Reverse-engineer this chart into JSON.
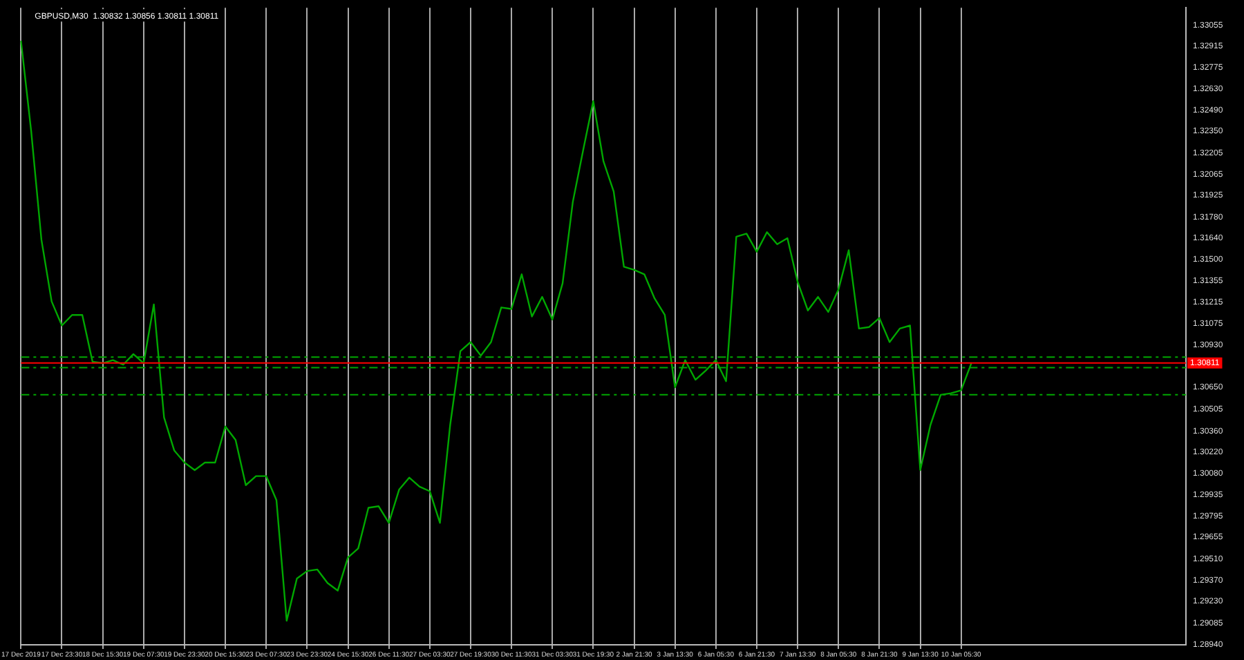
{
  "chart_data": {
    "type": "line",
    "title": "GBPUSD,M30  1.30832 1.30856 1.30811 1.30811",
    "categories": [
      "17 Dec 2019",
      null,
      null,
      null,
      "17 Dec 23:30",
      null,
      null,
      null,
      "18 Dec 15:30",
      null,
      null,
      null,
      "19 Dec 07:30",
      null,
      null,
      null,
      "19 Dec 23:30",
      null,
      null,
      null,
      "20 Dec 15:30",
      null,
      null,
      null,
      "23 Dec 07:30",
      null,
      null,
      null,
      "23 Dec 23:30",
      null,
      null,
      null,
      "24 Dec 15:30",
      null,
      null,
      null,
      "26 Dec 11:30",
      null,
      null,
      null,
      "27 Dec 03:30",
      null,
      null,
      null,
      "27 Dec 19:30",
      null,
      null,
      null,
      "30 Dec 11:30",
      null,
      null,
      null,
      "31 Dec 03:30",
      null,
      null,
      null,
      "31 Dec 19:30",
      null,
      null,
      null,
      "2 Jan 21:30",
      null,
      null,
      null,
      "3 Jan 13:30",
      null,
      null,
      null,
      "6 Jan 05:30",
      null,
      null,
      null,
      "6 Jan 21:30",
      null,
      null,
      null,
      "7 Jan 13:30",
      null,
      null,
      null,
      "8 Jan 05:30",
      null,
      null,
      null,
      "8 Jan 21:30",
      null,
      null,
      null,
      "9 Jan 13:30",
      null,
      null,
      null,
      "10 Jan 05:30",
      null,
      null,
      null,
      null,
      null,
      null,
      null,
      null,
      null,
      null,
      null,
      null,
      null,
      null,
      null,
      null,
      null,
      null,
      null,
      null,
      null,
      null
    ],
    "series": [
      {
        "color": "#00a800",
        "values": [
          1.3295,
          1.3235,
          1.3163,
          1.3122,
          1.3106,
          1.3113,
          1.3113,
          1.3082,
          1.3081,
          1.3083,
          1.308,
          1.3087,
          1.3081,
          1.312,
          1.3045,
          1.3023,
          1.3015,
          1.301,
          1.3015,
          1.3015,
          1.3039,
          1.303,
          1.3,
          1.3006,
          1.3006,
          1.299,
          1.291,
          1.2938,
          1.2943,
          1.2944,
          1.2935,
          1.293,
          1.2952,
          1.2958,
          1.2985,
          1.2986,
          1.2975,
          1.2997,
          1.3005,
          1.2999,
          1.2996,
          1.2975,
          1.304,
          1.3089,
          1.3095,
          1.3086,
          1.3095,
          1.3118,
          1.3117,
          1.314,
          1.3112,
          1.3125,
          1.311,
          1.3134,
          1.3188,
          1.3222,
          1.3255,
          1.3215,
          1.3195,
          1.3145,
          1.3143,
          1.314,
          1.3124,
          1.3113,
          1.3065,
          1.3083,
          1.307,
          1.3076,
          1.3083,
          1.3069,
          1.3165,
          1.3167,
          1.3155,
          1.3168,
          1.316,
          1.3164,
          1.3135,
          1.3116,
          1.3125,
          1.3115,
          1.313,
          1.3156,
          1.3104,
          1.3105,
          1.3111,
          1.3095,
          1.3104,
          1.3106,
          1.301,
          1.304,
          1.306,
          1.3061,
          1.3063,
          1.3081,
          null,
          null,
          null,
          null,
          null,
          null,
          null,
          null,
          null,
          null,
          null,
          null,
          null,
          null,
          null,
          null,
          null,
          null,
          null,
          null,
          null
        ]
      }
    ],
    "ylim": [
      1.2894,
      1.3317
    ],
    "yticks": [
      1.33055,
      1.32915,
      1.32775,
      {
        "value": 1.3263,
        "label": "1.32630"
      },
      {
        "value": 1.3249,
        "label": "1.32490"
      },
      {
        "value": 1.3235,
        "label": "1.32350"
      },
      1.32205,
      1.32065,
      1.31925,
      {
        "value": 1.3178,
        "label": "1.31780"
      },
      {
        "value": 1.3164,
        "label": "1.31640"
      },
      {
        "value": 1.315,
        "label": "1.31500"
      },
      1.31355,
      1.31215,
      1.31075,
      {
        "value": 1.3093,
        "label": "1.30930"
      },
      {
        "value": 1.3065,
        "label": "1.30650"
      },
      1.30505,
      {
        "value": 1.3036,
        "label": "1.30360"
      },
      {
        "value": 1.3022,
        "label": "1.30220"
      },
      {
        "value": 1.3008,
        "label": "1.30080"
      },
      1.29935,
      1.29795,
      1.29655,
      {
        "value": 1.2951,
        "label": "1.29510"
      },
      {
        "value": 1.2937,
        "label": "1.29370"
      },
      {
        "value": 1.2923,
        "label": "1.29230"
      },
      1.29085,
      {
        "value": 1.2894,
        "label": "1.28940"
      }
    ],
    "ref_lines": [
      {
        "axis": "y",
        "value": 1.30811,
        "label": "1.30811",
        "color": "#ff0000",
        "line_style": "solid"
      },
      {
        "axis": "y",
        "value": 1.3085,
        "color": "#00a800",
        "line_style": "dashed"
      },
      {
        "axis": "y",
        "value": 1.3078,
        "color": "#00a800",
        "line_style": "dashed"
      },
      {
        "axis": "y",
        "value": 1.306,
        "color": "#00a800",
        "line_style": "dashed"
      }
    ],
    "grid": "x",
    "legend": false,
    "marker": "none",
    "line_style": "solid"
  }
}
